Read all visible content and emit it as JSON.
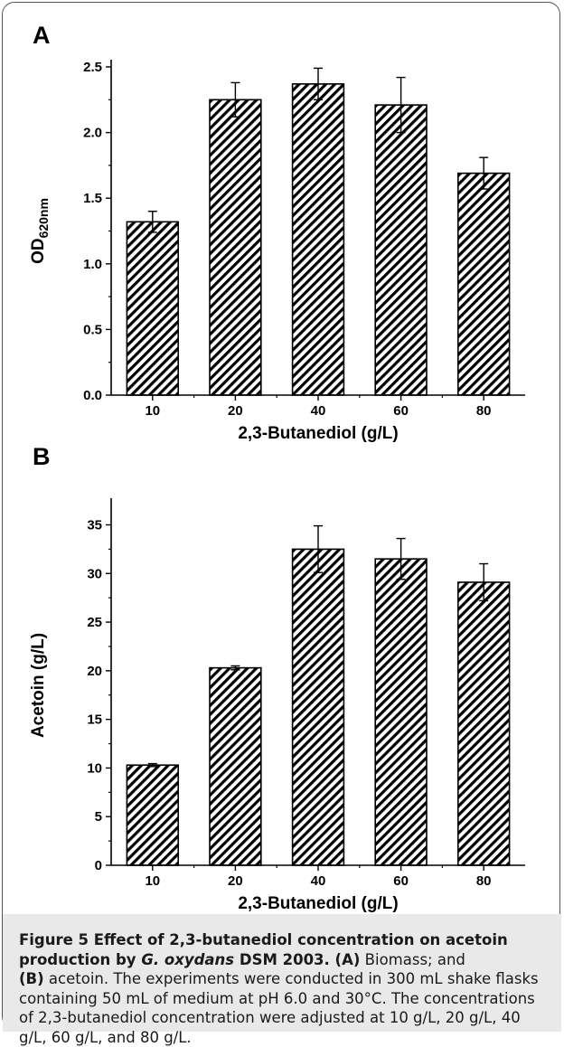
{
  "chart_data": [
    {
      "panel": "A",
      "type": "bar",
      "categories": [
        "10",
        "20",
        "40",
        "60",
        "80"
      ],
      "values": [
        1.32,
        2.25,
        2.37,
        2.21,
        1.69
      ],
      "errors": [
        0.08,
        0.13,
        0.12,
        0.21,
        0.12
      ],
      "xlabel": "2,3-Butanediol (g/L)",
      "ylabel_main": "OD",
      "ylabel_sub": "620nm",
      "ylim": [
        0,
        2.5
      ],
      "yticks": [
        "0.0",
        "0.5",
        "1.0",
        "1.5",
        "2.0",
        "2.5"
      ],
      "bar_fill": "diagonal hatch"
    },
    {
      "panel": "B",
      "type": "bar",
      "categories": [
        "10",
        "20",
        "40",
        "60",
        "80"
      ],
      "values": [
        10.3,
        20.3,
        32.5,
        31.5,
        29.1
      ],
      "errors": [
        0.15,
        0.2,
        2.4,
        2.1,
        1.9
      ],
      "xlabel": "2,3-Butanediol (g/L)",
      "ylabel_main": "Acetoin (g/L)",
      "ylim": [
        0,
        37
      ],
      "yticks": [
        "0",
        "5",
        "10",
        "15",
        "20",
        "25",
        "30",
        "35"
      ],
      "bar_fill": "diagonal hatch"
    }
  ],
  "caption": {
    "title": "Figure 5 Effect of 2,3-butanediol concentration on acetoin production by ",
    "organism": "G. oxydans",
    "strain": " DSM 2003.",
    "part_a_label": " (A)",
    "part_a_text": " Biomass; and",
    "part_b_label": "(B)",
    "part_b_text": " acetoin. The experiments were conducted in 300 mL shake flasks containing 50 mL of medium at pH 6.0 and 30°C. The concentrations of 2,3-butanediol concentration were adjusted at 10 g/L, 20 g/L, 40 g/L, 60 g/L, and 80 g/L."
  }
}
